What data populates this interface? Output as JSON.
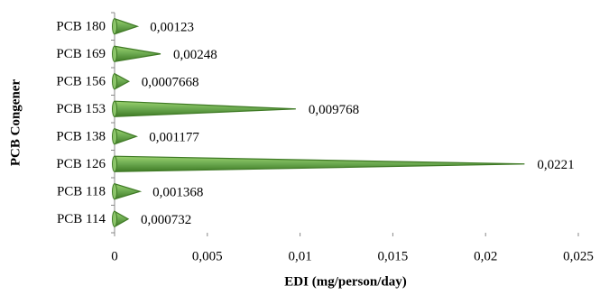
{
  "chart_data": {
    "type": "cone-bar",
    "orientation": "horizontal",
    "x_label": "EDI (mg/person/day)",
    "y_label": "PCB Congener",
    "categories": [
      "PCB 180",
      "PCB 169",
      "PCB 156",
      "PCB 153",
      "PCB 138",
      "PCB 126",
      "PCB 118",
      "PCB 114"
    ],
    "values": [
      0.00123,
      0.00248,
      0.0007668,
      0.009768,
      0.001177,
      0.0221,
      0.001368,
      0.000732
    ],
    "value_labels": [
      "0,00123",
      "0,00248",
      "0,0007668",
      "0,009768",
      "0,001177",
      "0,0221",
      "0,001368",
      "0,000732"
    ],
    "color": "#6aa84f",
    "xlim": [
      0,
      0.025
    ],
    "xticks": [
      0,
      {
        "value": 0.005,
        "label": "0,005"
      },
      {
        "value": 0.01,
        "label": "0,01"
      },
      {
        "value": 0.015,
        "label": "0,015"
      },
      {
        "value": 0.02,
        "label": "0,02"
      },
      {
        "value": 0.025,
        "label": "0,025"
      }
    ],
    "grid": false
  }
}
